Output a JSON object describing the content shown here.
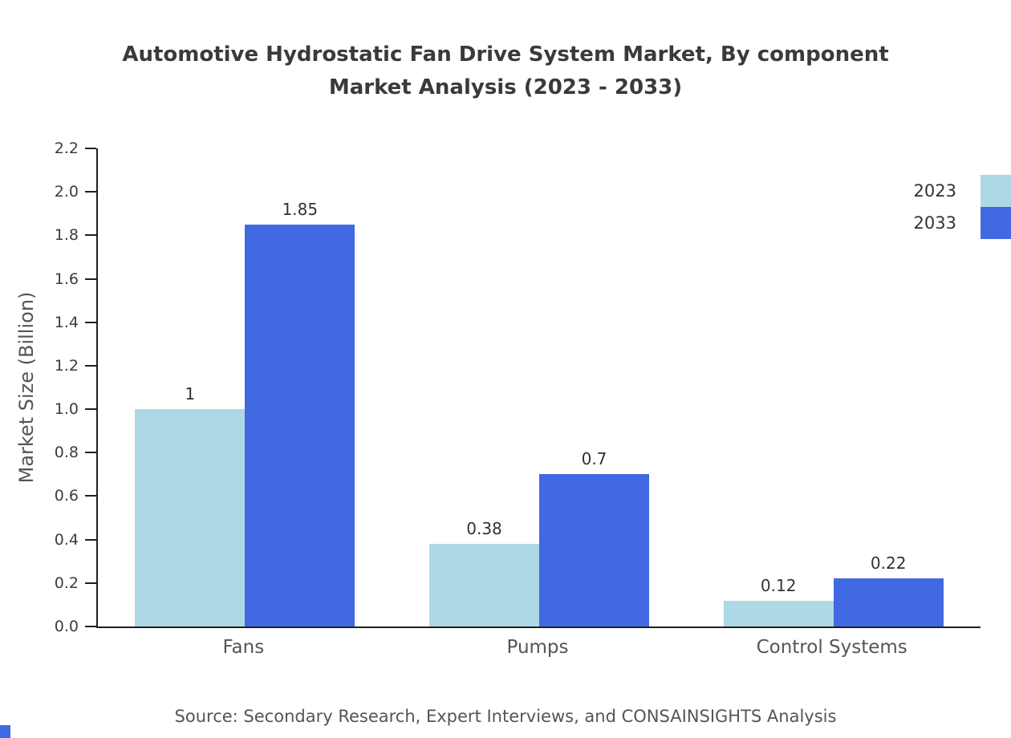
{
  "title": {
    "line1": "Automotive Hydrostatic Fan Drive System Market, By component",
    "line2": "Market Analysis (2023 - 2033)"
  },
  "chart_data": {
    "type": "bar",
    "title": "Automotive Hydrostatic Fan Drive System Market, By component Market Analysis (2023 - 2033)",
    "categories": [
      "Fans",
      "Pumps",
      "Control Systems"
    ],
    "series": [
      {
        "name": "2023",
        "color": "#ADD8E6",
        "values": [
          1,
          0.38,
          0.12
        ]
      },
      {
        "name": "2033",
        "color": "#4169E1",
        "values": [
          1.85,
          0.7,
          0.22
        ]
      }
    ],
    "xlabel": "",
    "ylabel": "Market Size (Billion)",
    "ylim": [
      0,
      2.2
    ],
    "ytick_step": 0.2,
    "grid": false,
    "legend_position": "top-right"
  },
  "footer": {
    "source": "Source: Secondary Research, Expert Interviews, and CONSAINSIGHTS Analysis"
  },
  "colors": {
    "series_2023": "#ADD8E6",
    "series_2033": "#4169E1",
    "axis": "#1f1f1f",
    "tick_text": "#3d3d3d",
    "label_text": "#555555",
    "title_text": "#3a3a3a"
  }
}
